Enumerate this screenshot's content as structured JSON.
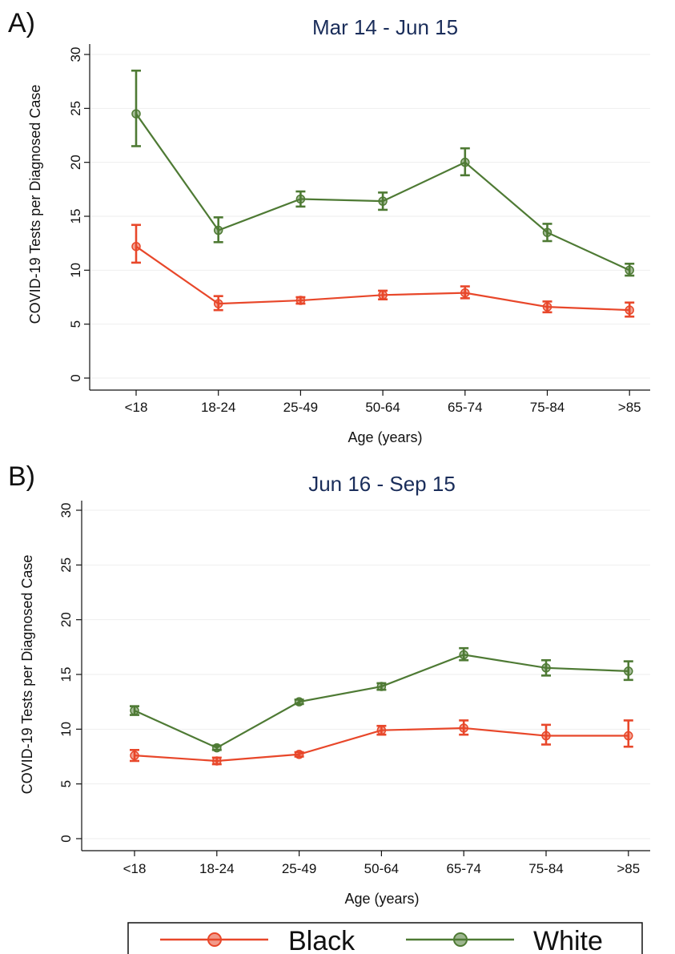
{
  "legend": {
    "items": [
      {
        "label": "Black",
        "color": "#e8472a"
      },
      {
        "label": "White",
        "color": "#4e7a34"
      }
    ]
  },
  "chart_data": [
    {
      "type": "line",
      "panel_label": "A)",
      "title": "Mar 14 - Jun 15",
      "xlabel": "Age (years)",
      "ylabel": "COVID-19 Tests per Diagnosed Case",
      "categories": [
        "<18",
        "18-24",
        "25-49",
        "50-64",
        "65-74",
        "75-84",
        ">85"
      ],
      "ylim": [
        0,
        30
      ],
      "yticks": [
        0,
        5,
        10,
        15,
        20,
        25,
        30
      ],
      "grid": true,
      "series": [
        {
          "name": "Black",
          "color": "#e8472a",
          "values": [
            12.2,
            6.9,
            7.2,
            7.7,
            7.9,
            6.6,
            6.3
          ],
          "ci_low": [
            10.7,
            6.3,
            6.9,
            7.3,
            7.4,
            6.1,
            5.7
          ],
          "ci_high": [
            14.2,
            7.6,
            7.5,
            8.1,
            8.5,
            7.1,
            7.0
          ]
        },
        {
          "name": "White",
          "color": "#4e7a34",
          "values": [
            24.5,
            13.7,
            16.6,
            16.4,
            20.0,
            13.5,
            10.0
          ],
          "ci_low": [
            21.5,
            12.6,
            15.9,
            15.6,
            18.8,
            12.7,
            9.5
          ],
          "ci_high": [
            28.5,
            14.9,
            17.3,
            17.2,
            21.3,
            14.3,
            10.6
          ]
        }
      ]
    },
    {
      "type": "line",
      "panel_label": "B)",
      "title": "Jun 16 - Sep 15",
      "xlabel": "Age (years)",
      "ylabel": "COVID-19 Tests per Diagnosed Case",
      "categories": [
        "<18",
        "18-24",
        "25-49",
        "50-64",
        "65-74",
        "75-84",
        ">85"
      ],
      "ylim": [
        0,
        30
      ],
      "yticks": [
        0,
        5,
        10,
        15,
        20,
        25,
        30
      ],
      "grid": true,
      "series": [
        {
          "name": "Black",
          "color": "#e8472a",
          "values": [
            7.6,
            7.1,
            7.7,
            9.9,
            10.1,
            9.4,
            9.4
          ],
          "ci_low": [
            7.1,
            6.8,
            7.5,
            9.5,
            9.5,
            8.6,
            8.4
          ],
          "ci_high": [
            8.1,
            7.4,
            7.9,
            10.3,
            10.8,
            10.4,
            10.8
          ]
        },
        {
          "name": "White",
          "color": "#4e7a34",
          "values": [
            11.7,
            8.3,
            12.5,
            13.9,
            16.8,
            15.6,
            15.3
          ],
          "ci_low": [
            11.3,
            8.1,
            12.3,
            13.6,
            16.3,
            14.9,
            14.5
          ],
          "ci_high": [
            12.1,
            8.5,
            12.7,
            14.2,
            17.4,
            16.3,
            16.2
          ]
        }
      ]
    }
  ]
}
